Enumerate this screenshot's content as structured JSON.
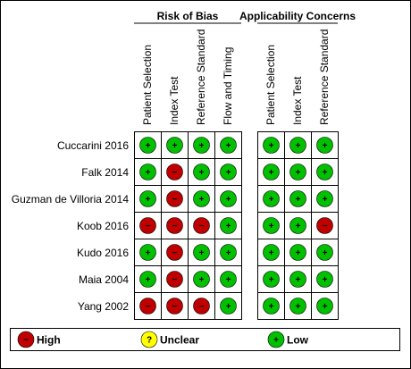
{
  "chart_data": {
    "type": "table",
    "groups": [
      {
        "title": "Risk of Bias",
        "domains": [
          "Patient Selection",
          "Index Test",
          "Reference Standard",
          "Flow and Timing"
        ]
      },
      {
        "title": "Applicability Concerns",
        "domains": [
          "Patient Selection",
          "Index Test",
          "Reference Standard"
        ]
      }
    ],
    "studies": [
      "Cuccarini 2016",
      "Falk 2014",
      "Guzman de Villoria 2014",
      "Koob 2016",
      "Kudo 2016",
      "Maia 2004",
      "Yang 2002"
    ],
    "risk_of_bias": [
      [
        "low",
        "low",
        "low",
        "low"
      ],
      [
        "low",
        "high",
        "low",
        "low"
      ],
      [
        "low",
        "high",
        "low",
        "low"
      ],
      [
        "high",
        "high",
        "high",
        "low"
      ],
      [
        "low",
        "high",
        "low",
        "low"
      ],
      [
        "low",
        "high",
        "low",
        "low"
      ],
      [
        "high",
        "high",
        "high",
        "low"
      ]
    ],
    "applicability": [
      [
        "low",
        "low",
        "low"
      ],
      [
        "low",
        "low",
        "low"
      ],
      [
        "low",
        "low",
        "low"
      ],
      [
        "low",
        "low",
        "high"
      ],
      [
        "low",
        "low",
        "low"
      ],
      [
        "low",
        "low",
        "low"
      ],
      [
        "low",
        "low",
        "low"
      ]
    ],
    "legend": [
      {
        "key": "high",
        "label": "High",
        "symbol": "−",
        "color": "#c00000"
      },
      {
        "key": "unclear",
        "label": "Unclear",
        "symbol": "?",
        "color": "#ffff00"
      },
      {
        "key": "low",
        "label": "Low",
        "symbol": "+",
        "color": "#00c000"
      }
    ]
  }
}
